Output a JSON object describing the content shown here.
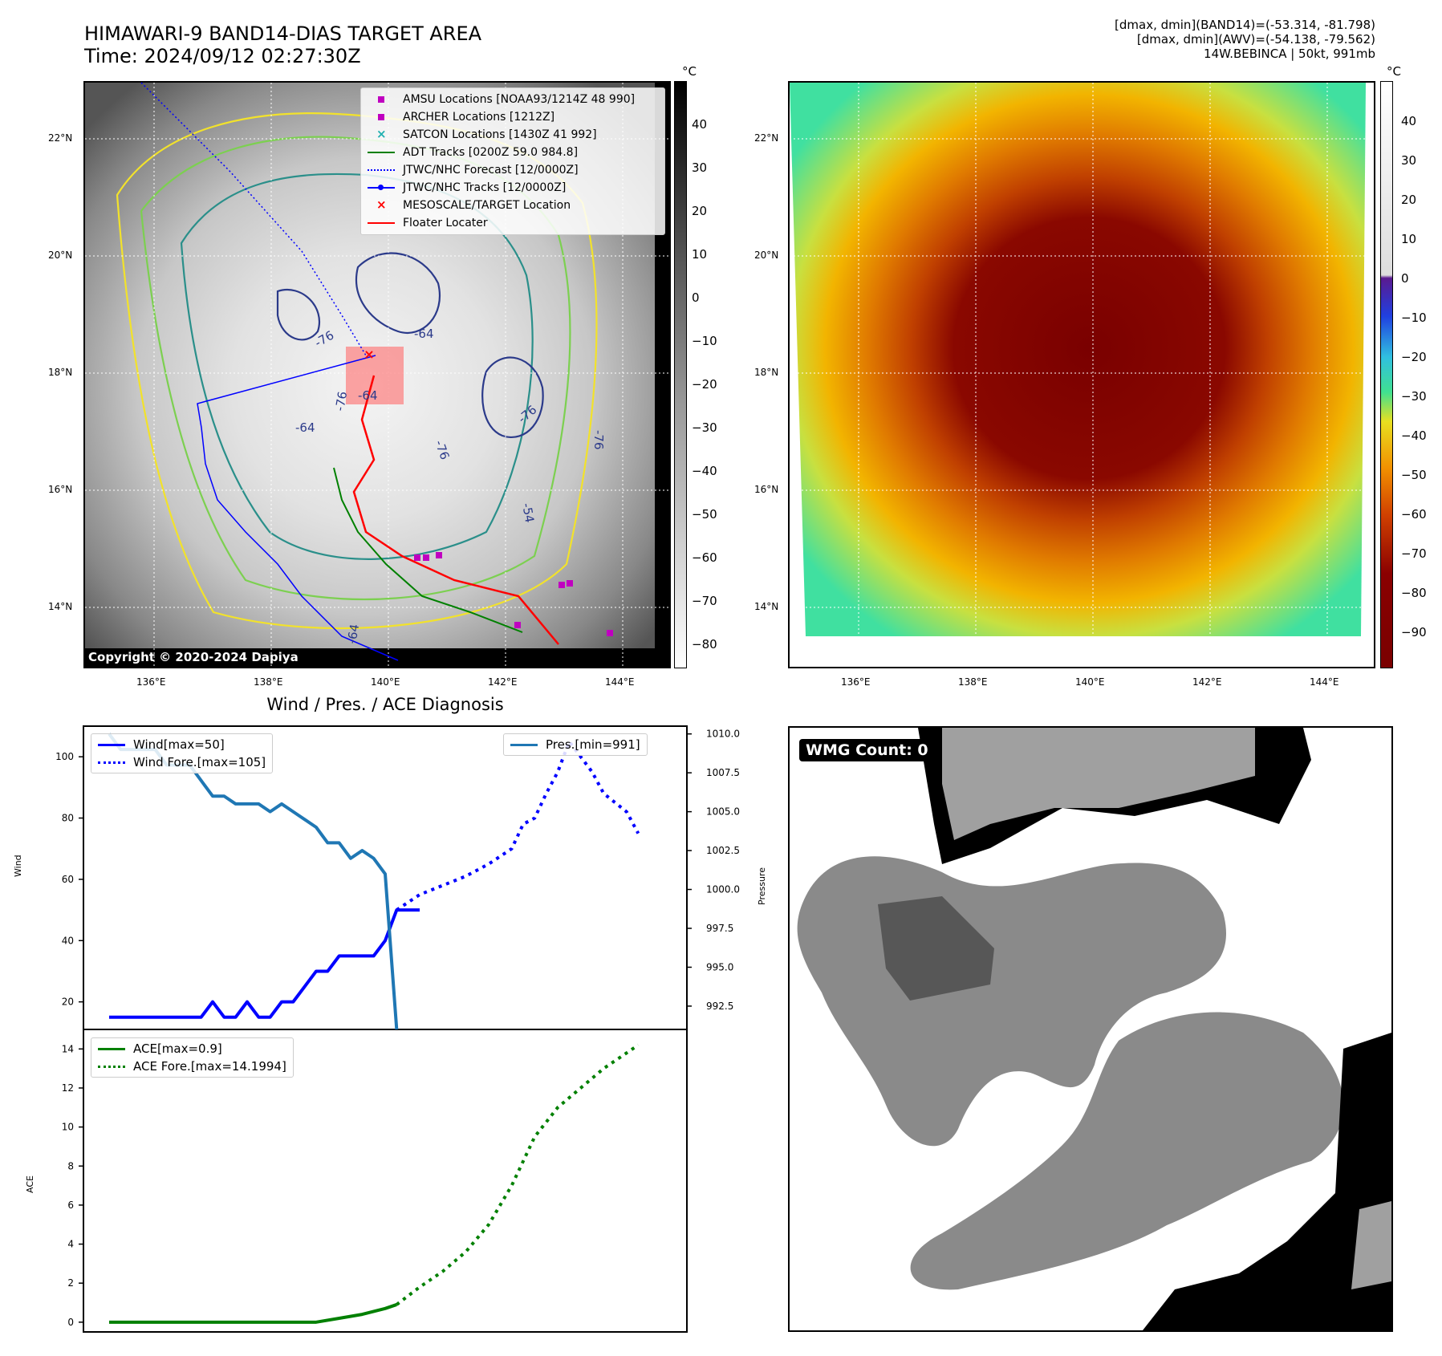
{
  "header": {
    "title_line1": "HIMAWARI-9 BAND14-DIAS TARGET AREA",
    "title_line2": "Time: 2024/09/12 02:27:30Z",
    "info_line1": "[dmax, dmin](BAND14)=(-53.314, -81.798)",
    "info_line2": "[dmax, dmin](AWV)=(-54.138, -79.562)",
    "info_line3": "14W.BEBINCA | 50kt, 991mb"
  },
  "map_axes": {
    "lat_labels": [
      "22°N",
      "20°N",
      "18°N",
      "16°N",
      "14°N"
    ],
    "lon_labels": [
      "136°E",
      "138°E",
      "140°E",
      "142°E",
      "144°E"
    ],
    "cb_unit": "°C"
  },
  "ir_map": {
    "copyright": "Copyright © 2020-2024 Dapiya",
    "colorbar_ticks": [
      "40",
      "30",
      "20",
      "10",
      "0",
      "−10",
      "−20",
      "−30",
      "−40",
      "−50",
      "−60",
      "−70",
      "−80"
    ],
    "contour_labels": [
      "-76",
      "-64",
      "-76",
      "-76",
      "-76",
      "-64",
      "-54",
      "-76",
      "-64",
      "-64"
    ],
    "legend": [
      {
        "label": "AMSU Locations [NOAA93/1214Z 48 990]",
        "marker": "square",
        "color": "#c000c0"
      },
      {
        "label": "ARCHER Locations [1212Z]",
        "marker": "square",
        "color": "#c000c0"
      },
      {
        "label": "SATCON Locations [1430Z 41 992]",
        "marker": "x",
        "color": "#20b0b0"
      },
      {
        "label": "ADT Tracks [0200Z 59.0 984.8]",
        "marker": "line",
        "color": "#008000"
      },
      {
        "label": "JTWC/NHC Forecast [12/0000Z]",
        "marker": "dotted",
        "color": "#0000ff"
      },
      {
        "label": "JTWC/NHC Tracks [12/0000Z]",
        "marker": "linedot",
        "color": "#0000ff"
      },
      {
        "label": "MESOSCALE/TARGET Location",
        "marker": "x",
        "color": "#ff0000"
      },
      {
        "label": "Floater Locater",
        "marker": "line",
        "color": "#ff0000"
      }
    ]
  },
  "color_map": {
    "colorbar_ticks": [
      "40",
      "30",
      "20",
      "10",
      "0",
      "−10",
      "−20",
      "−30",
      "−40",
      "−50",
      "−60",
      "−70",
      "−80",
      "−90"
    ]
  },
  "diagnosis": {
    "title": "Wind / Pres. / ACE Diagnosis",
    "wind_ylabel": "Wind",
    "pres_ylabel": "Pressure",
    "ace_ylabel": "ACE",
    "legend_wind": "Wind[max=50]",
    "legend_wind_fore": "Wind Fore.[max=105]",
    "legend_pres": "Pres.[min=991]",
    "legend_ace": "ACE[max=0.9]",
    "legend_ace_fore": "ACE Fore.[max=14.1994]"
  },
  "wmg": {
    "label": "WMG Count: 0"
  },
  "chart_data": [
    {
      "type": "line",
      "title": "Wind / Pres. / ACE Diagnosis",
      "ylabel": "Wind",
      "ylim": [
        11,
        110
      ],
      "y_ticks": [
        20,
        40,
        60,
        80,
        100
      ],
      "series": [
        {
          "name": "Wind[max=50]",
          "color": "#0000ff",
          "style": "solid",
          "x": [
            0,
            1,
            2,
            3,
            4,
            5,
            6,
            7,
            8,
            9,
            10,
            11,
            12,
            13,
            14,
            15,
            16,
            17,
            18,
            19,
            20,
            21,
            22,
            23,
            24,
            25,
            26,
            27
          ],
          "values": [
            15,
            15,
            15,
            15,
            15,
            15,
            15,
            15,
            15,
            20,
            15,
            15,
            20,
            15,
            15,
            20,
            20,
            25,
            30,
            30,
            35,
            35,
            35,
            35,
            40,
            50,
            50,
            50
          ]
        },
        {
          "name": "Wind Fore.[max=105]",
          "color": "#0000ff",
          "style": "dotted",
          "x": [
            25,
            27,
            29,
            31,
            33,
            35,
            36,
            37,
            38,
            39,
            40,
            41,
            42,
            43,
            44,
            45,
            46
          ],
          "values": [
            50,
            55,
            58,
            61,
            65,
            70,
            78,
            80,
            88,
            95,
            105,
            100,
            95,
            88,
            85,
            82,
            75
          ]
        }
      ]
    },
    {
      "type": "line",
      "ylabel": "Pressure",
      "ylim": [
        991,
        1010.5
      ],
      "y_ticks": [
        992.5,
        995.0,
        997.5,
        1000.0,
        1002.5,
        1005.0,
        1007.5,
        1010.0
      ],
      "series": [
        {
          "name": "Pres.[min=991]",
          "color": "#1f77b4",
          "style": "solid",
          "x": [
            0,
            1,
            2,
            3,
            4,
            5,
            6,
            7,
            8,
            9,
            10,
            11,
            12,
            13,
            14,
            15,
            16,
            17,
            18,
            19,
            20,
            21,
            22,
            23,
            24,
            25
          ],
          "values": [
            1010,
            1009,
            1009,
            1009,
            1009,
            1008,
            1008,
            1008,
            1007,
            1006,
            1006,
            1005.5,
            1005.5,
            1005.5,
            1005,
            1005.5,
            1005,
            1004.5,
            1004,
            1003,
            1003,
            1002,
            1002.5,
            1002,
            1001,
            991
          ]
        }
      ]
    },
    {
      "type": "line",
      "ylabel": "ACE",
      "ylim": [
        -0.5,
        15
      ],
      "y_ticks": [
        0,
        2,
        4,
        6,
        8,
        10,
        12,
        14
      ],
      "series": [
        {
          "name": "ACE[max=0.9]",
          "color": "#008000",
          "style": "solid",
          "x": [
            0,
            4,
            8,
            12,
            16,
            18,
            20,
            22,
            24,
            25
          ],
          "values": [
            0,
            0,
            0,
            0,
            0,
            0,
            0.2,
            0.4,
            0.7,
            0.9
          ]
        },
        {
          "name": "ACE Fore.[max=14.1994]",
          "color": "#008000",
          "style": "dotted",
          "x": [
            25,
            27,
            29,
            31,
            33,
            35,
            37,
            39,
            41,
            43,
            46
          ],
          "values": [
            0.9,
            1.8,
            2.6,
            3.6,
            5.0,
            7.0,
            9.5,
            11.0,
            12.0,
            13.0,
            14.2
          ]
        }
      ]
    }
  ]
}
